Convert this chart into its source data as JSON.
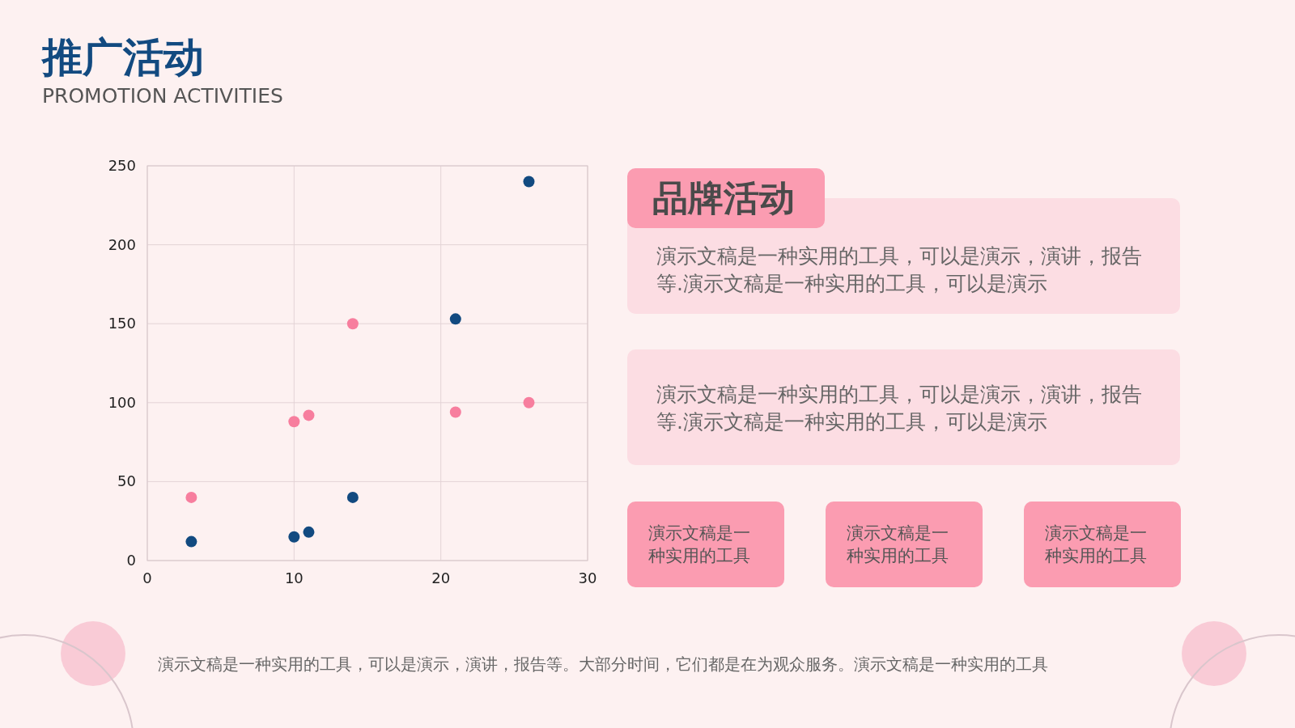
{
  "chart_data": {
    "type": "scatter",
    "title": "推广活动",
    "subtitle": "PROMOTION ACTIVITIES",
    "x": [
      3,
      10,
      11,
      14,
      21,
      26
    ],
    "series": [
      {
        "color": "#f77e9e",
        "values": [
          40,
          88,
          92,
          150,
          94,
          100
        ]
      },
      {
        "color": "#124a80",
        "values": [
          12,
          15,
          18,
          40,
          153,
          240
        ]
      }
    ],
    "xlim": [
      0,
      30
    ],
    "xticks": [
      0,
      10,
      20,
      30
    ],
    "ylim": [
      0,
      250
    ],
    "yticks": [
      0,
      50,
      100,
      150,
      200,
      250
    ],
    "grid": true,
    "marker": "circle",
    "annotations": [
      "品牌活动",
      "演示文稿是一种实用的工具，可以是演示，演讲，报告等.演示文稿是一种实用的工具，可以是演示",
      "演示文稿是一种实用的工具，可以是演示，演讲，报告等.演示文稿是一种实用的工具，可以是演示",
      "演示文稿是一种实用的工具",
      "演示文稿是一种实用的工具",
      "演示文稿是一种实用的工具",
      "演示文稿是一种实用的工具，可以是演示，演讲，报告等。大部分时间，它们都是在为观众服务。演示文稿是一种实用的工具"
    ]
  }
}
